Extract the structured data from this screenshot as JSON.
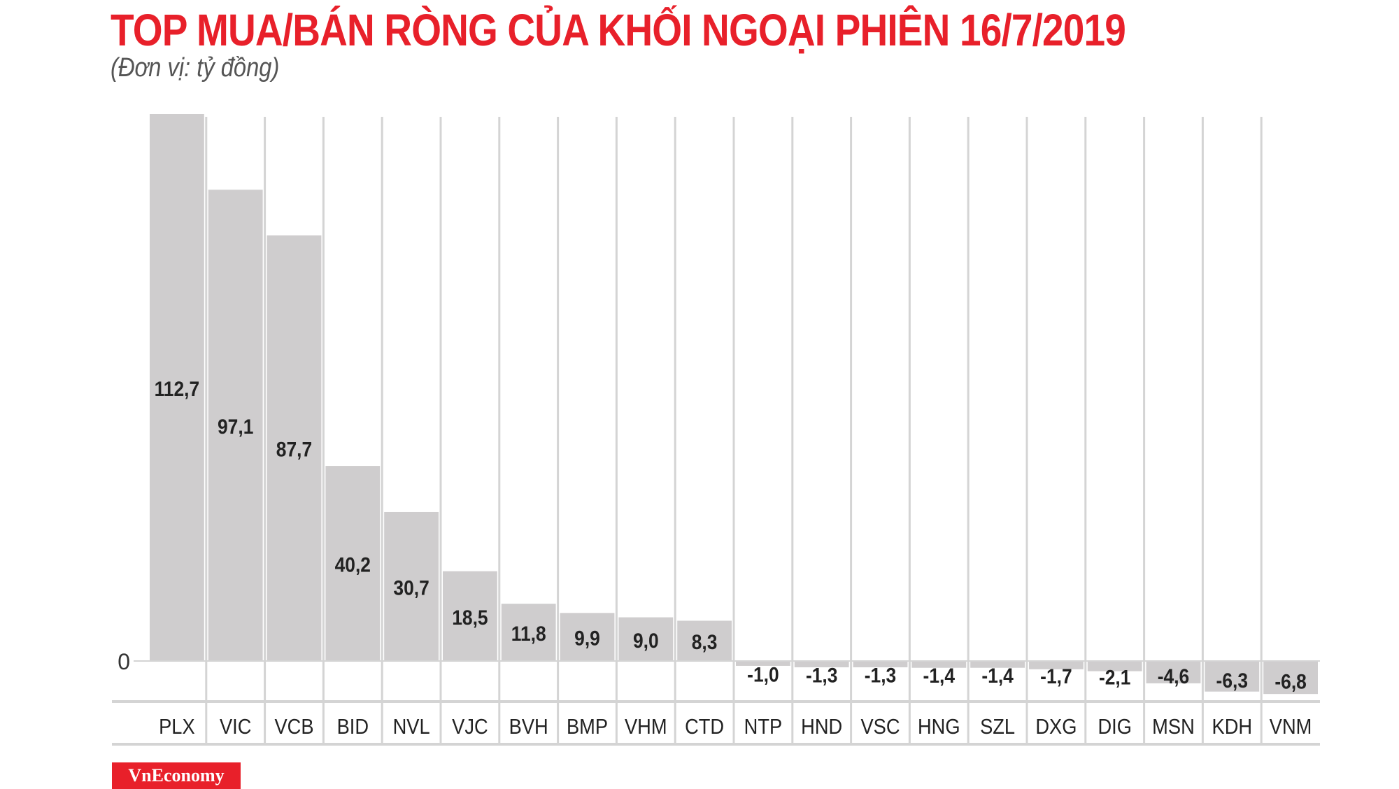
{
  "chart_data": {
    "type": "bar",
    "title": "TOP MUA/BÁN RÒNG CỦA KHỐI NGOẠI PHIÊN 16/7/2019",
    "subtitle": "(Đơn vị: tỷ đồng)",
    "categories": [
      "PLX",
      "VIC",
      "VCB",
      "BID",
      "NVL",
      "VJC",
      "BVH",
      "BMP",
      "VHM",
      "CTD",
      "NTP",
      "HND",
      "VSC",
      "HNG",
      "SZL",
      "DXG",
      "DIG",
      "MSN",
      "KDH",
      "VNM"
    ],
    "values": [
      112.7,
      97.1,
      87.7,
      40.2,
      30.7,
      18.5,
      11.8,
      9.9,
      9.0,
      8.3,
      -1.0,
      -1.3,
      -1.3,
      -1.4,
      -1.4,
      -1.7,
      -2.1,
      -4.6,
      -6.3,
      -6.8
    ],
    "value_labels": [
      "112,7",
      "97,1",
      "87,7",
      "40,2",
      "30,7",
      "18,5",
      "11,8",
      "9,9",
      "9,0",
      "8,3",
      "-1,0",
      "-1,3",
      "-1,3",
      "-1,4",
      "-1,4",
      "-1,7",
      "-2,1",
      "-4,6",
      "-6,3",
      "-6,8"
    ],
    "y_tick_labels": [
      "0"
    ],
    "xlabel": "",
    "ylabel": "",
    "grid": "vertical",
    "colors": {
      "bar": "#cfcdce",
      "grid": "#d4d4d4",
      "title": "#e8202a",
      "text": "#222222"
    }
  },
  "brand": {
    "logo_text": "VnEconomy"
  }
}
